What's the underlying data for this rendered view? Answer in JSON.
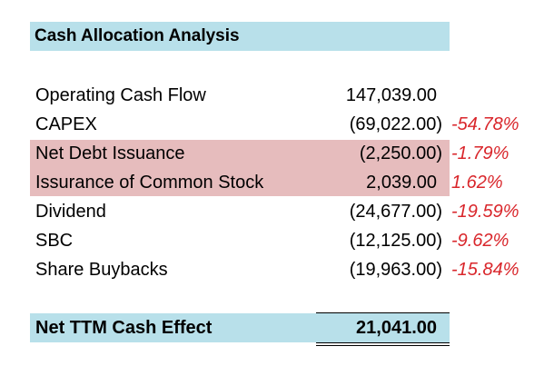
{
  "title": "Cash Allocation Analysis",
  "rows": [
    {
      "label": "Operating Cash Flow",
      "value": "147,039.00",
      "pct": ""
    },
    {
      "label": "CAPEX",
      "value": "(69,022.00)",
      "pct": "-54.78%"
    },
    {
      "label": "Net Debt Issuance",
      "value": "(2,250.00)",
      "pct": "-1.79%"
    },
    {
      "label": "Issurance of Common Stock",
      "value": "2,039.00",
      "pct": "1.62%"
    },
    {
      "label": "Dividend",
      "value": "(24,677.00)",
      "pct": "-19.59%"
    },
    {
      "label": "SBC",
      "value": "(12,125.00)",
      "pct": "-9.62%"
    },
    {
      "label": "Share Buybacks",
      "value": "(19,963.00)",
      "pct": "-15.84%"
    }
  ],
  "total": {
    "label": "Net TTM Cash Effect",
    "value": "21,041.00"
  },
  "colors": {
    "title_fill": "#b8e0ea",
    "highlight_fill": "#e6bcbd",
    "percent_text": "#d9262b"
  }
}
